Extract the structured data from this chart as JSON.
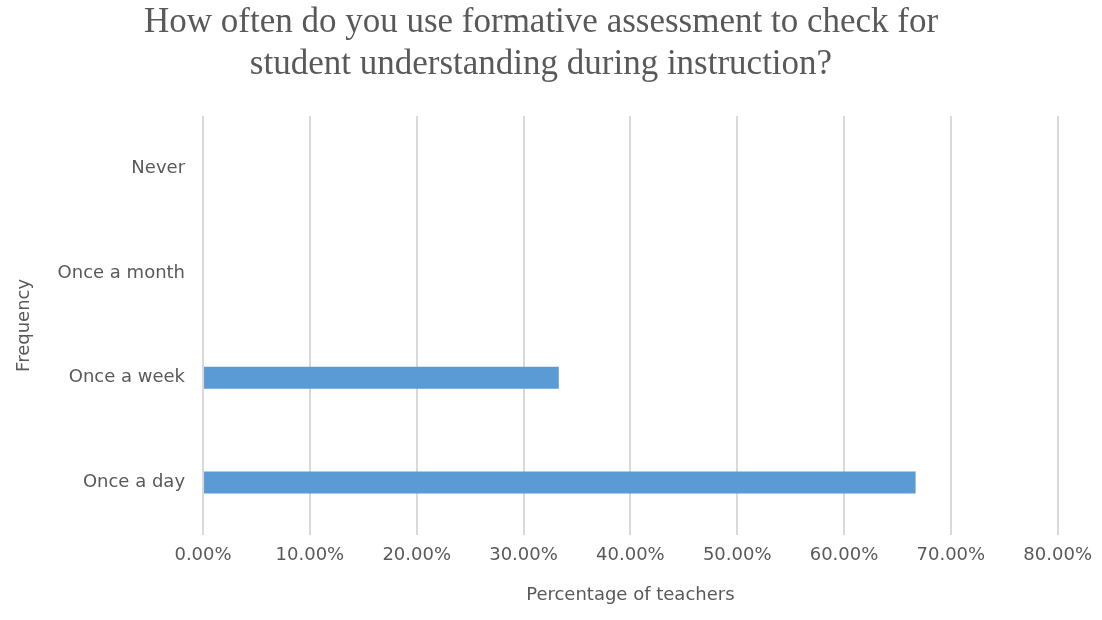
{
  "chart_data": {
    "type": "bar",
    "orientation": "horizontal",
    "title": "How often do you use formative assessment to check for student understanding during instruction?",
    "xlabel": "Percentage of teachers",
    "ylabel": "Frequency",
    "categories": [
      "Never",
      "Once a month",
      "Once a week",
      "Once a day"
    ],
    "values": [
      0,
      0,
      33.3,
      66.7
    ],
    "color": "#5b9bd5",
    "xlim": [
      0,
      80
    ],
    "xticks": [
      {
        "value": 0,
        "label": "0.00%"
      },
      {
        "value": 10,
        "label": "10.00%"
      },
      {
        "value": 20,
        "label": "20.00%"
      },
      {
        "value": 30,
        "label": "30.00%"
      },
      {
        "value": 40,
        "label": "40.00%"
      },
      {
        "value": 50,
        "label": "50.00%"
      },
      {
        "value": 60,
        "label": "60.00%"
      },
      {
        "value": 70,
        "label": "70.00%"
      },
      {
        "value": 80,
        "label": "80.00%"
      }
    ],
    "grid": "x",
    "legend": false
  }
}
